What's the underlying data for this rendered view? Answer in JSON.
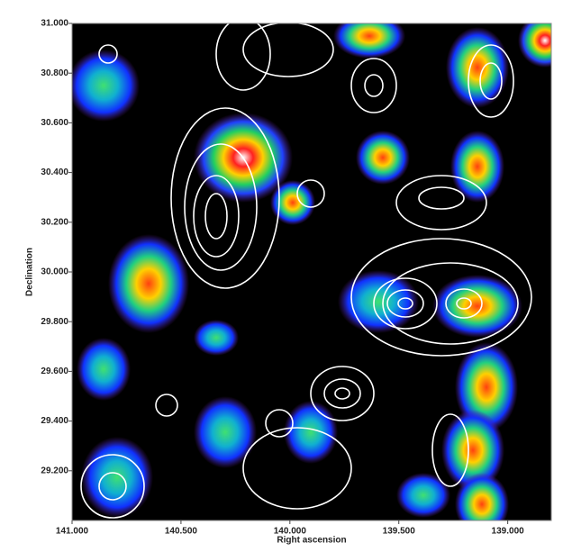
{
  "chart_data": {
    "type": "image",
    "xlabel": "Right ascension",
    "ylabel": "Declination",
    "xlim": [
      141.0,
      138.8
    ],
    "ylim": [
      29.0,
      31.0
    ],
    "xticks": [
      {
        "value": 141.0,
        "label": "141.000"
      },
      {
        "value": 140.5,
        "label": "140.500"
      },
      {
        "value": 140.0,
        "label": "140.000"
      },
      {
        "value": 139.5,
        "label": "139.500"
      },
      {
        "value": 139.0,
        "label": "139.000"
      }
    ],
    "yticks": [
      {
        "value": 29.2,
        "label": "29.200"
      },
      {
        "value": 29.4,
        "label": "29.400"
      },
      {
        "value": 29.6,
        "label": "29.600"
      },
      {
        "value": 29.8,
        "label": "29.800"
      },
      {
        "value": 30.0,
        "label": "30.000"
      },
      {
        "value": 30.2,
        "label": "30.200"
      },
      {
        "value": 30.4,
        "label": "30.400"
      },
      {
        "value": 30.6,
        "label": "30.600"
      },
      {
        "value": 30.8,
        "label": "30.800"
      },
      {
        "value": 31.0,
        "label": "31.000"
      }
    ]
  }
}
